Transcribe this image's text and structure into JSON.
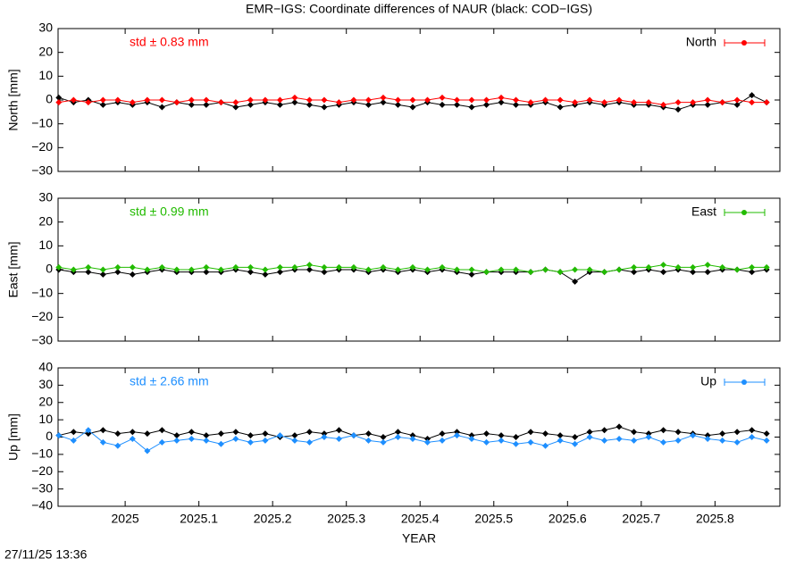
{
  "timestamp": "27/11/25 13:36",
  "chart_data": [
    {
      "type": "line",
      "title": "EMR−IGS: Coordinate differences of NAUR (black: COD−IGS)",
      "ylabel": "North [mm]",
      "stat": "std ± 0.83 mm",
      "xlim": [
        2024.909,
        2025.888
      ],
      "ylim": [
        -30,
        30
      ],
      "yticks": [
        {
          "value": -30,
          "label": "−30"
        },
        {
          "value": -20,
          "label": "−20"
        },
        {
          "value": -10,
          "label": "−10"
        },
        0,
        10,
        20,
        30
      ],
      "legend": "top-right",
      "x": [
        2024.91,
        2024.93,
        2024.95,
        2024.97,
        2024.99,
        2025.01,
        2025.03,
        2025.05,
        2025.07,
        2025.09,
        2025.11,
        2025.13,
        2025.15,
        2025.17,
        2025.19,
        2025.21,
        2025.23,
        2025.25,
        2025.27,
        2025.29,
        2025.31,
        2025.33,
        2025.35,
        2025.37,
        2025.39,
        2025.41,
        2025.43,
        2025.45,
        2025.47,
        2025.49,
        2025.51,
        2025.53,
        2025.55,
        2025.57,
        2025.59,
        2025.61,
        2025.63,
        2025.65,
        2025.67,
        2025.69,
        2025.71,
        2025.73,
        2025.75,
        2025.77,
        2025.79,
        2025.81,
        2025.83,
        2025.85,
        2025.87
      ],
      "series": [
        {
          "color": "#000000",
          "values": [
            1,
            -1,
            0,
            -2,
            -1,
            -2,
            -1,
            -3,
            -1,
            -2,
            -2,
            -1,
            -3,
            -2,
            -1,
            -2,
            -1,
            -2,
            -3,
            -2,
            -1,
            -2,
            -1,
            -2,
            -3,
            -1,
            -2,
            -2,
            -3,
            -2,
            -1,
            -2,
            -2,
            -1,
            -3,
            -2,
            -1,
            -2,
            -1,
            -2,
            -2,
            -3,
            -4,
            -2,
            -2,
            -1,
            -2,
            2,
            -1
          ]
        },
        {
          "name": "North",
          "color": "#ff0000",
          "values": [
            -1,
            0,
            -1,
            0,
            0,
            -1,
            0,
            0,
            -1,
            0,
            0,
            -1,
            -1,
            0,
            0,
            0,
            1,
            0,
            0,
            -1,
            0,
            0,
            1,
            0,
            0,
            0,
            1,
            0,
            0,
            0,
            1,
            0,
            -1,
            0,
            0,
            -1,
            0,
            -1,
            0,
            -1,
            -1,
            -2,
            -1,
            -1,
            0,
            -1,
            0,
            -1,
            -1
          ]
        }
      ]
    },
    {
      "type": "line",
      "ylabel": "East [mm]",
      "stat": "std ± 0.99 mm",
      "xlim": [
        2024.909,
        2025.888
      ],
      "ylim": [
        -30,
        30
      ],
      "yticks": [
        {
          "value": -30,
          "label": "−30"
        },
        {
          "value": -20,
          "label": "−20"
        },
        {
          "value": -10,
          "label": "−10"
        },
        0,
        10,
        20,
        30
      ],
      "legend": "top-right",
      "x": [
        2024.91,
        2024.93,
        2024.95,
        2024.97,
        2024.99,
        2025.01,
        2025.03,
        2025.05,
        2025.07,
        2025.09,
        2025.11,
        2025.13,
        2025.15,
        2025.17,
        2025.19,
        2025.21,
        2025.23,
        2025.25,
        2025.27,
        2025.29,
        2025.31,
        2025.33,
        2025.35,
        2025.37,
        2025.39,
        2025.41,
        2025.43,
        2025.45,
        2025.47,
        2025.49,
        2025.51,
        2025.53,
        2025.55,
        2025.57,
        2025.59,
        2025.61,
        2025.63,
        2025.65,
        2025.67,
        2025.69,
        2025.71,
        2025.73,
        2025.75,
        2025.77,
        2025.79,
        2025.81,
        2025.83,
        2025.85,
        2025.87
      ],
      "series": [
        {
          "color": "#000000",
          "values": [
            0,
            -1,
            -1,
            -2,
            -1,
            -2,
            -1,
            0,
            -1,
            -1,
            -1,
            -1,
            0,
            -1,
            -2,
            -1,
            0,
            0,
            -1,
            0,
            0,
            -1,
            0,
            -1,
            0,
            -1,
            0,
            -1,
            -2,
            -1,
            -1,
            -1,
            -1,
            0,
            -1,
            -5,
            -1,
            -1,
            0,
            -1,
            0,
            -1,
            0,
            -1,
            -1,
            0,
            0,
            -1,
            0
          ]
        },
        {
          "name": "East",
          "color": "#22bb00",
          "values": [
            1,
            0,
            1,
            0,
            1,
            1,
            0,
            1,
            0,
            0,
            1,
            0,
            1,
            1,
            0,
            1,
            1,
            2,
            1,
            1,
            1,
            0,
            1,
            0,
            1,
            0,
            1,
            0,
            0,
            -1,
            0,
            0,
            -1,
            0,
            -1,
            0,
            0,
            -1,
            0,
            1,
            1,
            2,
            1,
            1,
            2,
            1,
            0,
            1,
            1
          ]
        }
      ]
    },
    {
      "type": "line",
      "ylabel": "Up [mm]",
      "stat": "std ± 2.66 mm",
      "xlabel": "YEAR",
      "xlim": [
        2024.909,
        2025.888
      ],
      "ylim": [
        -40,
        40
      ],
      "xticks": [
        2025,
        2025.1,
        2025.2,
        2025.3,
        2025.4,
        2025.5,
        2025.6,
        2025.7,
        2025.8
      ],
      "yticks": [
        {
          "value": -40,
          "label": "−40"
        },
        {
          "value": -30,
          "label": "−30"
        },
        {
          "value": -20,
          "label": "−20"
        },
        {
          "value": -10,
          "label": "−10"
        },
        0,
        10,
        20,
        30,
        40
      ],
      "legend": "top-right",
      "x": [
        2024.91,
        2024.93,
        2024.95,
        2024.97,
        2024.99,
        2025.01,
        2025.03,
        2025.05,
        2025.07,
        2025.09,
        2025.11,
        2025.13,
        2025.15,
        2025.17,
        2025.19,
        2025.21,
        2025.23,
        2025.25,
        2025.27,
        2025.29,
        2025.31,
        2025.33,
        2025.35,
        2025.37,
        2025.39,
        2025.41,
        2025.43,
        2025.45,
        2025.47,
        2025.49,
        2025.51,
        2025.53,
        2025.55,
        2025.57,
        2025.59,
        2025.61,
        2025.63,
        2025.65,
        2025.67,
        2025.69,
        2025.71,
        2025.73,
        2025.75,
        2025.77,
        2025.79,
        2025.81,
        2025.83,
        2025.85,
        2025.87
      ],
      "series": [
        {
          "color": "#000000",
          "values": [
            1,
            3,
            2,
            4,
            2,
            3,
            2,
            4,
            1,
            3,
            1,
            2,
            3,
            1,
            2,
            0,
            1,
            3,
            2,
            4,
            1,
            2,
            0,
            3,
            1,
            -1,
            2,
            3,
            1,
            2,
            1,
            0,
            3,
            2,
            1,
            0,
            3,
            4,
            6,
            3,
            2,
            4,
            3,
            2,
            1,
            2,
            3,
            4,
            2
          ]
        },
        {
          "name": "Up",
          "color": "#1e8fff",
          "values": [
            1,
            -2,
            4,
            -3,
            -5,
            -1,
            -8,
            -3,
            -2,
            -1,
            -2,
            -4,
            -1,
            -3,
            -2,
            1,
            -2,
            -3,
            0,
            -1,
            1,
            -2,
            -3,
            0,
            -1,
            -3,
            -2,
            1,
            -1,
            -3,
            -2,
            -4,
            -3,
            -5,
            -2,
            -4,
            0,
            -2,
            -1,
            -2,
            0,
            -3,
            -2,
            1,
            -1,
            -2,
            -3,
            0,
            -2
          ]
        }
      ]
    }
  ]
}
